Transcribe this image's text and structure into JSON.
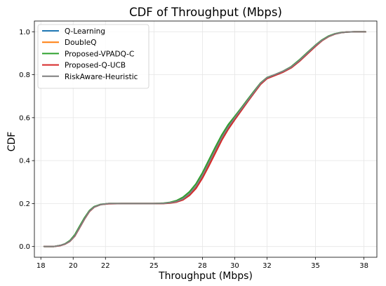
{
  "chart_data": {
    "type": "line",
    "title": "CDF of Throughput (Mbps)",
    "xlabel": "Throughput (Mbps)",
    "ylabel": "CDF",
    "xlim": [
      17.6,
      38.8
    ],
    "ylim": [
      -0.05,
      1.05
    ],
    "x_ticks": [
      18,
      20,
      22,
      25,
      28,
      30,
      32,
      35,
      38
    ],
    "y_ticks": [
      0.0,
      0.2,
      0.4,
      0.6,
      0.8,
      1.0
    ],
    "y_tick_labels": [
      "0.0",
      "0.2",
      "0.4",
      "0.6",
      "0.8",
      "1.0"
    ],
    "grid": true,
    "legend_position": "upper-left",
    "series": [
      {
        "name": "Q-Learning",
        "color": "#1f77b4",
        "x": [
          18.2,
          18.8,
          19.2,
          19.5,
          19.8,
          20.1,
          20.4,
          20.7,
          21.0,
          21.3,
          21.7,
          22.2,
          23.0,
          24.0,
          25.0,
          25.6,
          26.0,
          26.4,
          26.8,
          27.2,
          27.6,
          28.0,
          28.4,
          28.8,
          29.2,
          29.6,
          30.0,
          30.4,
          30.8,
          31.2,
          31.6,
          32.0,
          32.5,
          33.0,
          33.5,
          34.0,
          34.5,
          35.0,
          35.4,
          35.8,
          36.2,
          36.6,
          37.0,
          37.4,
          37.8,
          38.1
        ],
        "y": [
          0.0,
          0.0,
          0.005,
          0.012,
          0.025,
          0.05,
          0.09,
          0.13,
          0.165,
          0.185,
          0.196,
          0.2,
          0.2,
          0.2,
          0.2,
          0.201,
          0.204,
          0.21,
          0.222,
          0.245,
          0.28,
          0.33,
          0.39,
          0.45,
          0.51,
          0.56,
          0.6,
          0.64,
          0.68,
          0.72,
          0.76,
          0.785,
          0.8,
          0.815,
          0.835,
          0.865,
          0.9,
          0.935,
          0.96,
          0.978,
          0.99,
          0.996,
          0.999,
          1.0,
          1.0,
          1.0
        ]
      },
      {
        "name": "DoubleQ",
        "color": "#ff7f0e",
        "x": [
          18.2,
          18.8,
          19.2,
          19.5,
          19.8,
          20.1,
          20.4,
          20.7,
          21.0,
          21.3,
          21.7,
          22.2,
          23.0,
          24.0,
          25.0,
          25.6,
          26.0,
          26.4,
          26.8,
          27.2,
          27.6,
          28.0,
          28.4,
          28.8,
          29.2,
          29.6,
          30.0,
          30.4,
          30.8,
          31.2,
          31.6,
          32.0,
          32.5,
          33.0,
          33.5,
          34.0,
          34.5,
          35.0,
          35.4,
          35.8,
          36.2,
          36.6,
          37.0,
          37.4,
          37.8,
          38.1
        ],
        "y": [
          0.0,
          0.0,
          0.005,
          0.012,
          0.026,
          0.052,
          0.091,
          0.13,
          0.164,
          0.184,
          0.195,
          0.2,
          0.2,
          0.2,
          0.2,
          0.201,
          0.203,
          0.208,
          0.22,
          0.243,
          0.278,
          0.326,
          0.385,
          0.445,
          0.505,
          0.555,
          0.598,
          0.638,
          0.678,
          0.718,
          0.758,
          0.784,
          0.799,
          0.814,
          0.834,
          0.864,
          0.899,
          0.934,
          0.959,
          0.977,
          0.99,
          0.996,
          0.999,
          1.0,
          1.0,
          1.0
        ]
      },
      {
        "name": "Proposed-VPADQ-C",
        "color": "#2ca02c",
        "x": [
          18.2,
          18.8,
          19.2,
          19.5,
          19.8,
          20.1,
          20.4,
          20.7,
          21.0,
          21.3,
          21.7,
          22.2,
          23.0,
          24.0,
          25.0,
          25.6,
          26.0,
          26.4,
          26.8,
          27.2,
          27.6,
          28.0,
          28.4,
          28.8,
          29.2,
          29.6,
          30.0,
          30.4,
          30.8,
          31.2,
          31.6,
          32.0,
          32.5,
          33.0,
          33.5,
          34.0,
          34.5,
          35.0,
          35.4,
          35.8,
          36.2,
          36.6,
          37.0,
          37.4,
          37.8,
          38.1
        ],
        "y": [
          0.0,
          0.0,
          0.005,
          0.013,
          0.028,
          0.055,
          0.095,
          0.134,
          0.167,
          0.186,
          0.196,
          0.2,
          0.2,
          0.2,
          0.2,
          0.202,
          0.206,
          0.214,
          0.23,
          0.255,
          0.292,
          0.343,
          0.403,
          0.463,
          0.52,
          0.568,
          0.606,
          0.645,
          0.685,
          0.724,
          0.762,
          0.787,
          0.801,
          0.817,
          0.838,
          0.869,
          0.904,
          0.938,
          0.962,
          0.98,
          0.991,
          0.997,
          0.999,
          1.0,
          1.0,
          1.0
        ]
      },
      {
        "name": "Proposed-Q-UCB",
        "color": "#d62728",
        "x": [
          18.2,
          18.8,
          19.2,
          19.5,
          19.8,
          20.1,
          20.4,
          20.7,
          21.0,
          21.3,
          21.7,
          22.2,
          23.0,
          24.0,
          25.0,
          25.6,
          26.0,
          26.4,
          26.8,
          27.2,
          27.6,
          28.0,
          28.4,
          28.8,
          29.2,
          29.6,
          30.0,
          30.4,
          30.8,
          31.2,
          31.6,
          32.0,
          32.5,
          33.0,
          33.5,
          34.0,
          34.5,
          35.0,
          35.4,
          35.8,
          36.2,
          36.6,
          37.0,
          37.4,
          37.8,
          38.1
        ],
        "y": [
          0.0,
          0.0,
          0.004,
          0.011,
          0.024,
          0.048,
          0.087,
          0.127,
          0.162,
          0.183,
          0.195,
          0.199,
          0.2,
          0.2,
          0.2,
          0.2,
          0.202,
          0.207,
          0.217,
          0.238,
          0.27,
          0.318,
          0.375,
          0.435,
          0.495,
          0.546,
          0.59,
          0.632,
          0.674,
          0.715,
          0.755,
          0.782,
          0.797,
          0.812,
          0.832,
          0.862,
          0.897,
          0.932,
          0.958,
          0.977,
          0.989,
          0.996,
          0.999,
          1.0,
          1.0,
          1.0
        ]
      },
      {
        "name": "RiskAware-Heuristic",
        "color": "#7f7f7f",
        "x": [
          18.2,
          18.8,
          19.2,
          19.5,
          19.8,
          20.1,
          20.4,
          20.7,
          21.0,
          21.3,
          21.7,
          22.2,
          23.0,
          24.0,
          25.0,
          25.6,
          26.0,
          26.4,
          26.8,
          27.2,
          27.6,
          28.0,
          28.4,
          28.8,
          29.2,
          29.6,
          30.0,
          30.4,
          30.8,
          31.2,
          31.6,
          32.0,
          32.5,
          33.0,
          33.5,
          34.0,
          34.5,
          35.0,
          35.4,
          35.8,
          36.2,
          36.6,
          37.0,
          37.4,
          37.8,
          38.1
        ],
        "y": [
          0.0,
          0.0,
          0.005,
          0.012,
          0.025,
          0.05,
          0.089,
          0.129,
          0.164,
          0.184,
          0.195,
          0.2,
          0.2,
          0.2,
          0.2,
          0.201,
          0.204,
          0.21,
          0.222,
          0.246,
          0.281,
          0.331,
          0.39,
          0.45,
          0.508,
          0.557,
          0.599,
          0.64,
          0.68,
          0.72,
          0.76,
          0.786,
          0.801,
          0.816,
          0.836,
          0.866,
          0.901,
          0.936,
          0.96,
          0.978,
          0.99,
          0.996,
          0.999,
          1.0,
          1.0,
          1.0
        ]
      }
    ]
  }
}
